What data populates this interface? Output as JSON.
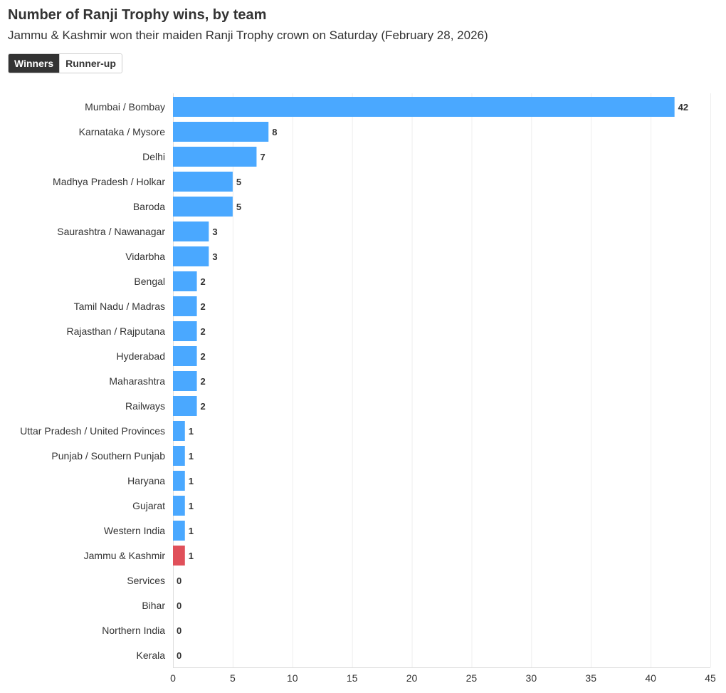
{
  "colors": {
    "bar": "#4aa8ff",
    "highlight": "#e0505a",
    "text": "#333333",
    "toggle_active_bg": "#333333"
  },
  "toggle": {
    "options": [
      "Winners",
      "Runner-up"
    ],
    "selected": "Winners"
  },
  "chart_data": {
    "type": "bar",
    "orientation": "horizontal",
    "title": "Number of Ranji Trophy wins, by team",
    "subtitle": "Jammu & Kashmir won their maiden Ranji Trophy crown on Saturday (February 28, 2026)",
    "xlabel": "",
    "ylabel": "",
    "xlim": [
      0,
      45
    ],
    "xticks": [
      0,
      5,
      10,
      15,
      20,
      25,
      30,
      35,
      40,
      45
    ],
    "grid": true,
    "highlight_category": "Jammu & Kashmir",
    "categories": [
      "Mumbai / Bombay",
      "Karnataka / Mysore",
      "Delhi",
      "Madhya Pradesh / Holkar",
      "Baroda",
      "Saurashtra / Nawanagar",
      "Vidarbha",
      "Bengal",
      "Tamil Nadu / Madras",
      "Rajasthan / Rajputana",
      "Hyderabad",
      "Maharashtra",
      "Railways",
      "Uttar Pradesh / United Provinces",
      "Punjab / Southern Punjab",
      "Haryana",
      "Gujarat",
      "Western India",
      "Jammu & Kashmir",
      "Services",
      "Bihar",
      "Northern India",
      "Kerala"
    ],
    "values": [
      42,
      8,
      7,
      5,
      5,
      3,
      3,
      2,
      2,
      2,
      2,
      2,
      2,
      1,
      1,
      1,
      1,
      1,
      1,
      0,
      0,
      0,
      0
    ]
  }
}
